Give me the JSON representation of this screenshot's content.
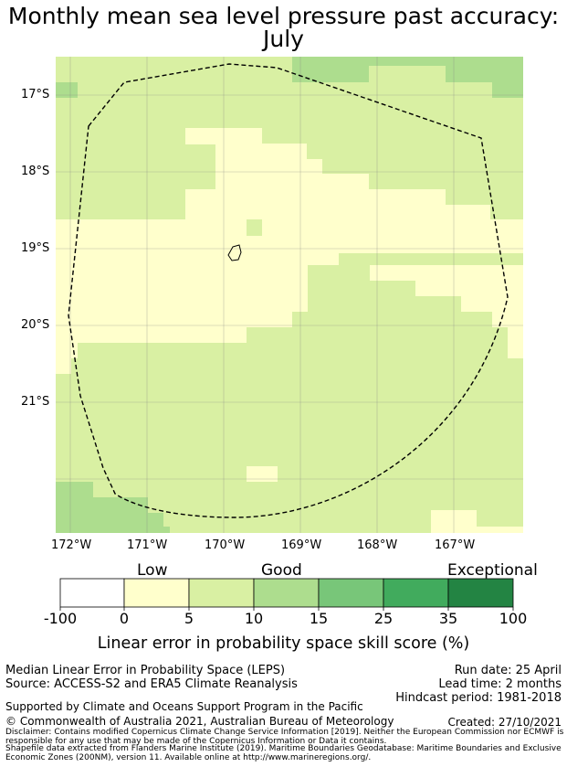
{
  "title": {
    "line1": "Monthly mean sea level pressure past accuracy:",
    "line2": "July"
  },
  "map": {
    "lat_labels": [
      "17°S",
      "18°S",
      "19°S",
      "20°S",
      "21°S"
    ],
    "lon_labels": [
      "172°W",
      "171°W",
      "170°W",
      "169°W",
      "168°W",
      "167°W"
    ],
    "colors": {
      "lt5": "#ffffcc",
      "lt10": "#d9f0a3",
      "lt15": "#addd8e",
      "ocean": "#ffffff"
    },
    "boundary_style": "dashed",
    "island": "Niue"
  },
  "colorbar": {
    "categories": [
      "Low",
      "Good",
      "Exceptional"
    ],
    "ticks": [
      "-100",
      "0",
      "5",
      "10",
      "15",
      "25",
      "35",
      "100"
    ],
    "colors": [
      "#ffffff",
      "#ffffcc",
      "#d9f0a3",
      "#addd8e",
      "#78c679",
      "#41ab5d",
      "#238443"
    ],
    "title": "Linear error in probability space skill score (%)"
  },
  "info": {
    "leps": "Median Linear Error in Probability Space (LEPS)",
    "source": "Source: ACCESS-S2 and ERA5 Climate Reanalysis",
    "run_date": "Run date: 25 April",
    "lead_time": "Lead time: 2 months",
    "hindcast": "Hindcast period: 1981-2018",
    "support": "Supported by Climate and Oceans Support Program in the Pacific",
    "copyright": "© Commonwealth of Australia 2021, Australian Bureau of Meteorology",
    "created": "Created: 27/10/2021",
    "disclaimer": "Disclaimer: Contains modified Copernicus Climate Change Service Information [2019]. Neither the European Commission nor ECMWF is responsible for any use that may be made of the Copernicus Information or Data it contains.",
    "shapefile": "Shapefile data extracted from Flanders Marine Institute (2019). Maritime Boundaries Geodatabase: Maritime Boundaries and Exclusive Economic Zones (200NM), version 11. Available online at http://www.marineregions.org/."
  }
}
